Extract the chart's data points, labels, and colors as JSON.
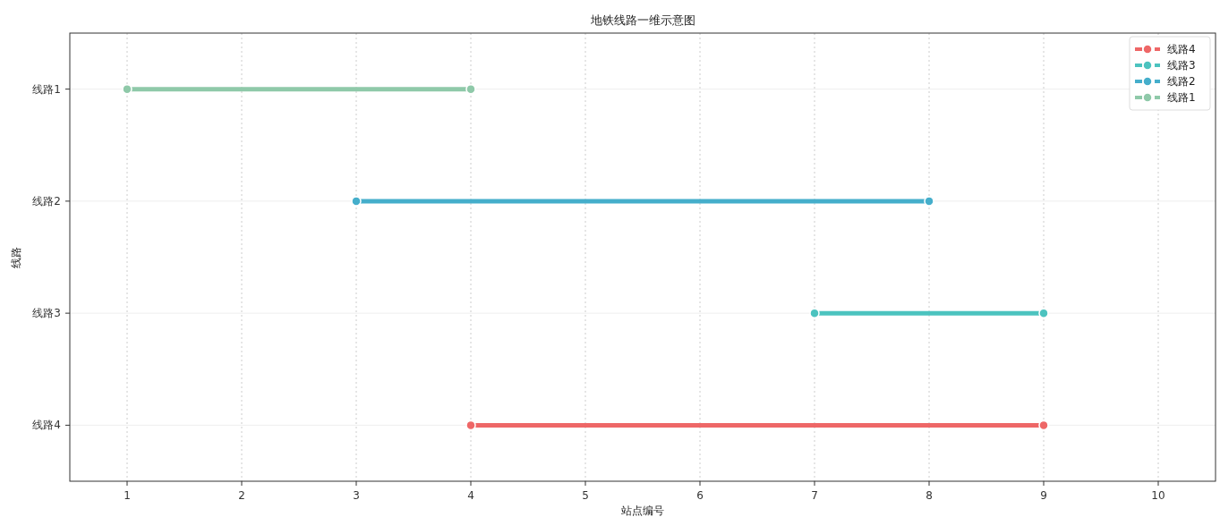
{
  "chart_data": {
    "type": "bar",
    "orientation": "horizontal",
    "title": "地铁线路一维示意图",
    "xlabel": "站点编号",
    "ylabel": "线路",
    "categories": [
      "线路1",
      "线路2",
      "线路3",
      "线路4"
    ],
    "series": [
      {
        "type": "scatter",
        "colors": [
          "#8fc9a9",
          "#45aecb",
          "#4cc3bf",
          "#ee6767"
        ],
        "values": [
          1,
          3,
          7,
          4
        ]
      },
      {
        "type": "scatter",
        "colors": [
          "#8fc9a9",
          "#45aecb",
          "#4cc3bf",
          "#ee6767"
        ],
        "values": [
          4,
          8,
          9,
          9
        ]
      },
      {
        "name": "线路4",
        "color": "#ee6767",
        "base": [
          null,
          null,
          null,
          4
        ],
        "values": [
          null,
          null,
          null,
          5
        ]
      },
      {
        "name": "线路3",
        "color": "#4cc3bf",
        "base": [
          null,
          null,
          7,
          null
        ],
        "values": [
          null,
          null,
          2,
          null
        ]
      },
      {
        "name": "线路2",
        "color": "#45aecb",
        "base": [
          null,
          3,
          null,
          null
        ],
        "values": [
          null,
          5,
          null,
          null
        ]
      },
      {
        "name": "线路1",
        "color": "#8fc9a9",
        "base": [
          1,
          null,
          null,
          null
        ],
        "values": [
          3,
          null,
          null,
          null
        ]
      }
    ],
    "xlim": [
      0.5,
      10.5
    ],
    "xticks": [
      1,
      2,
      3,
      4,
      5,
      6,
      7,
      8,
      9,
      10
    ],
    "grid": true,
    "legend": "top right",
    "marker": "circle"
  }
}
